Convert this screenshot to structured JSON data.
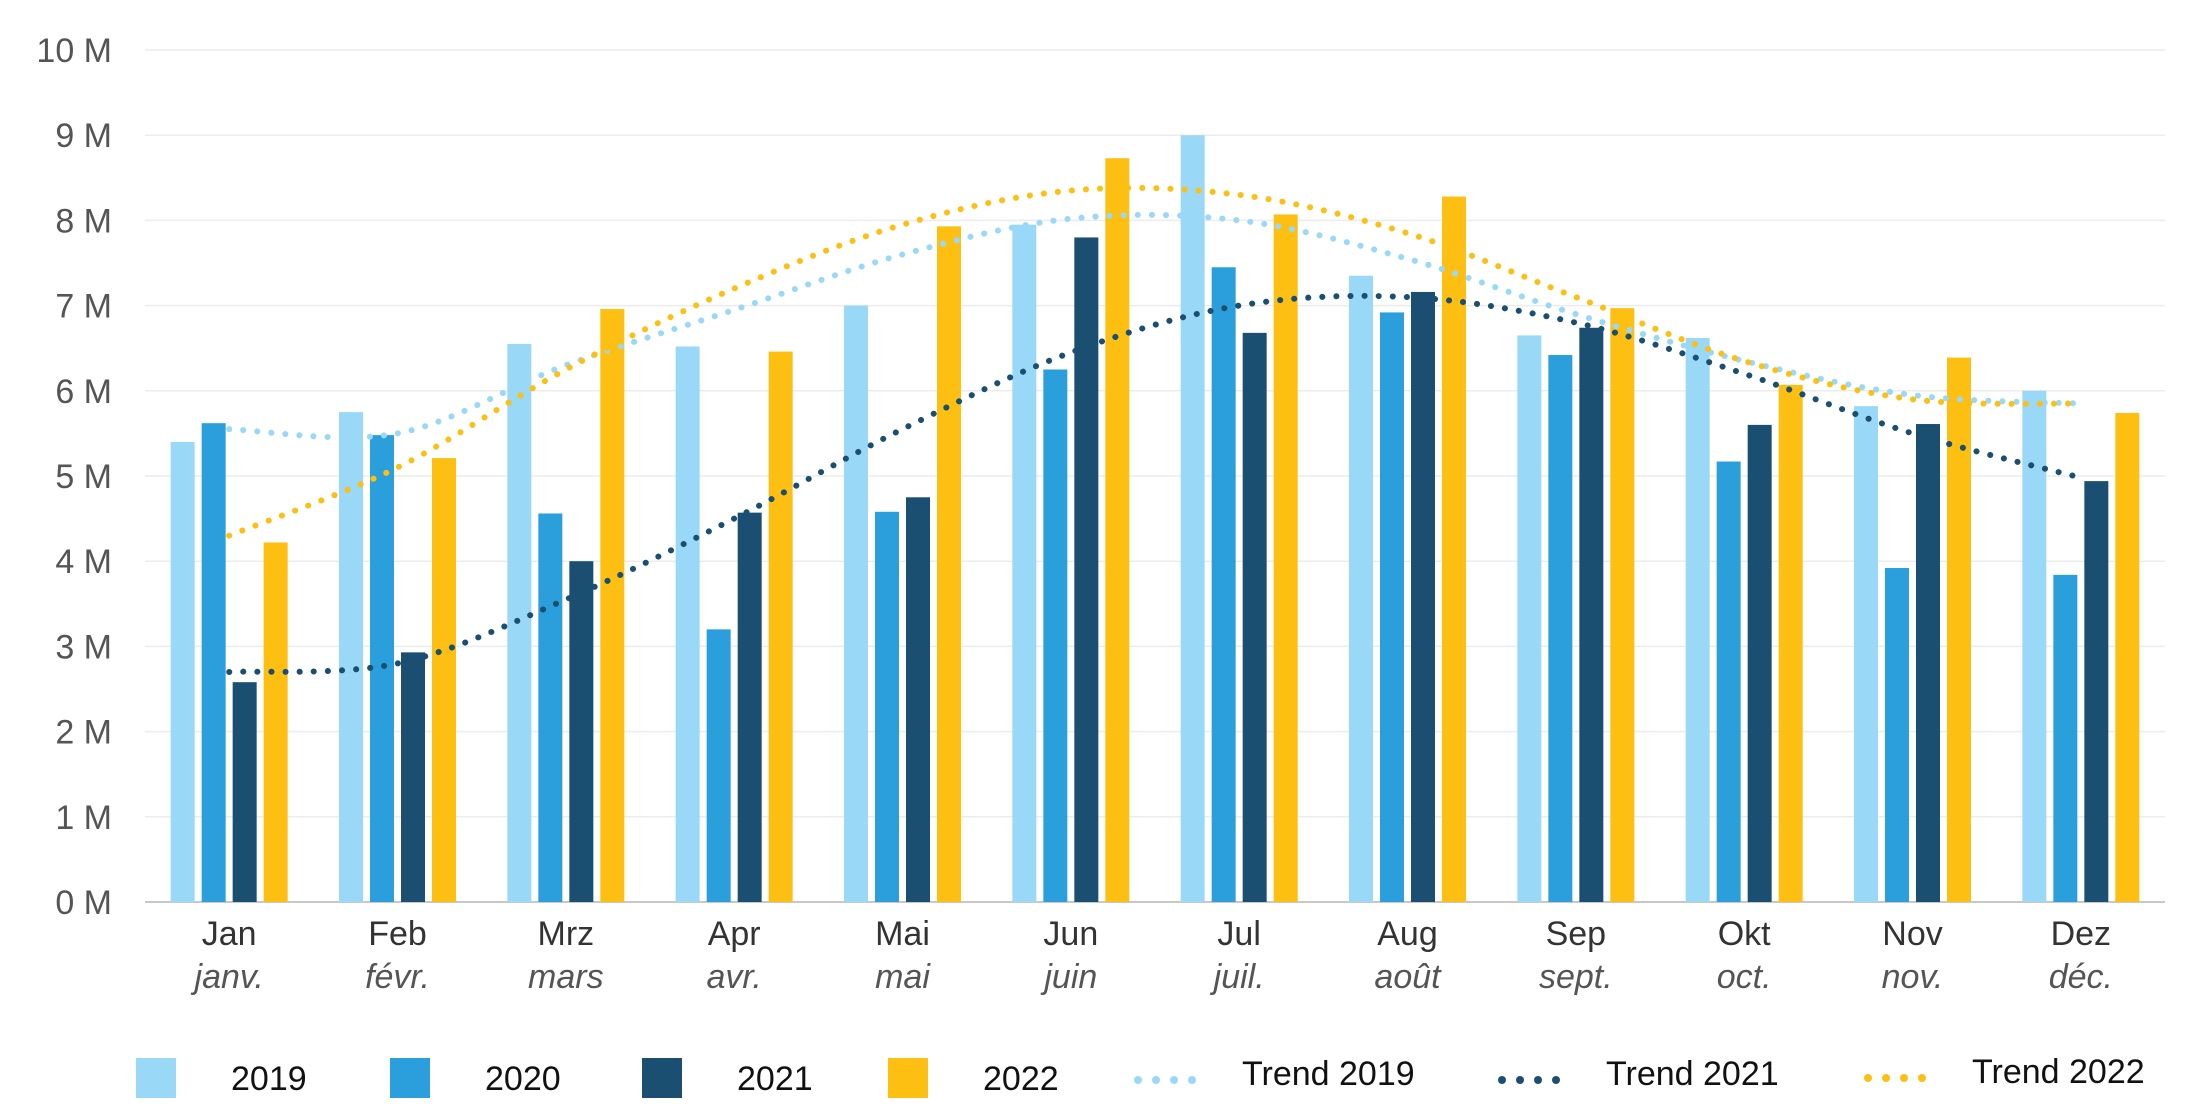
{
  "chart_data": {
    "type": "bar",
    "categories": [
      "Jan",
      "Feb",
      "Mrz",
      "Apr",
      "Mai",
      "Jun",
      "Jul",
      "Aug",
      "Sep",
      "Okt",
      "Nov",
      "Dez"
    ],
    "category_sublabels": [
      "janv.",
      "févr.",
      "mars",
      "avr.",
      "mai",
      "juin",
      "juil.",
      "août",
      "sept.",
      "oct.",
      "nov.",
      "déc."
    ],
    "ylim": [
      0,
      10000000
    ],
    "yticks": [
      0,
      1000000,
      2000000,
      3000000,
      4000000,
      5000000,
      6000000,
      7000000,
      8000000,
      9000000,
      10000000
    ],
    "ytick_labels": [
      "0 M",
      "1 M",
      "2 M",
      "3 M",
      "4 M",
      "5 M",
      "6 M",
      "7 M",
      "8 M",
      "9 M",
      "10 M"
    ],
    "grid": true,
    "legend_position": "bottom",
    "series": [
      {
        "name": "2019",
        "color": "#99d8f7",
        "values": [
          5400000,
          5750000,
          6550000,
          6520000,
          7000000,
          7950000,
          9000000,
          7350000,
          6650000,
          6620000,
          5820000,
          6000000
        ]
      },
      {
        "name": "2020",
        "color": "#2b9fdb",
        "values": [
          5620000,
          5480000,
          4560000,
          3200000,
          4580000,
          6250000,
          7450000,
          6920000,
          6420000,
          5170000,
          3920000,
          3840000
        ]
      },
      {
        "name": "2021",
        "color": "#1b4f72",
        "values": [
          2580000,
          2930000,
          4000000,
          4570000,
          4750000,
          7800000,
          6680000,
          7160000,
          6740000,
          5600000,
          5610000,
          4940000
        ]
      },
      {
        "name": "2022",
        "color": "#fcbf12",
        "values": [
          4220000,
          5210000,
          6960000,
          6460000,
          7930000,
          8730000,
          8070000,
          8280000,
          6970000,
          6070000,
          6390000,
          5740000
        ]
      }
    ],
    "trends": [
      {
        "name": "Trend 2019",
        "color": "#99d8f7",
        "values": [
          5550000,
          5500000,
          6300000,
          6950000,
          7600000,
          8020000,
          8000000,
          7550000,
          6900000,
          6350000,
          5950000,
          5850000
        ]
      },
      {
        "name": "Trend 2021",
        "color": "#1b4f72",
        "values": [
          2700000,
          2800000,
          3550000,
          4500000,
          5550000,
          6450000,
          7000000,
          7100000,
          6800000,
          6200000,
          5500000,
          4980000
        ]
      },
      {
        "name": "Trend 2022",
        "color": "#fcbf12",
        "values": [
          4300000,
          5100000,
          6250000,
          7200000,
          7950000,
          8350000,
          8300000,
          7850000,
          7100000,
          6350000,
          5900000,
          5850000
        ]
      }
    ]
  }
}
